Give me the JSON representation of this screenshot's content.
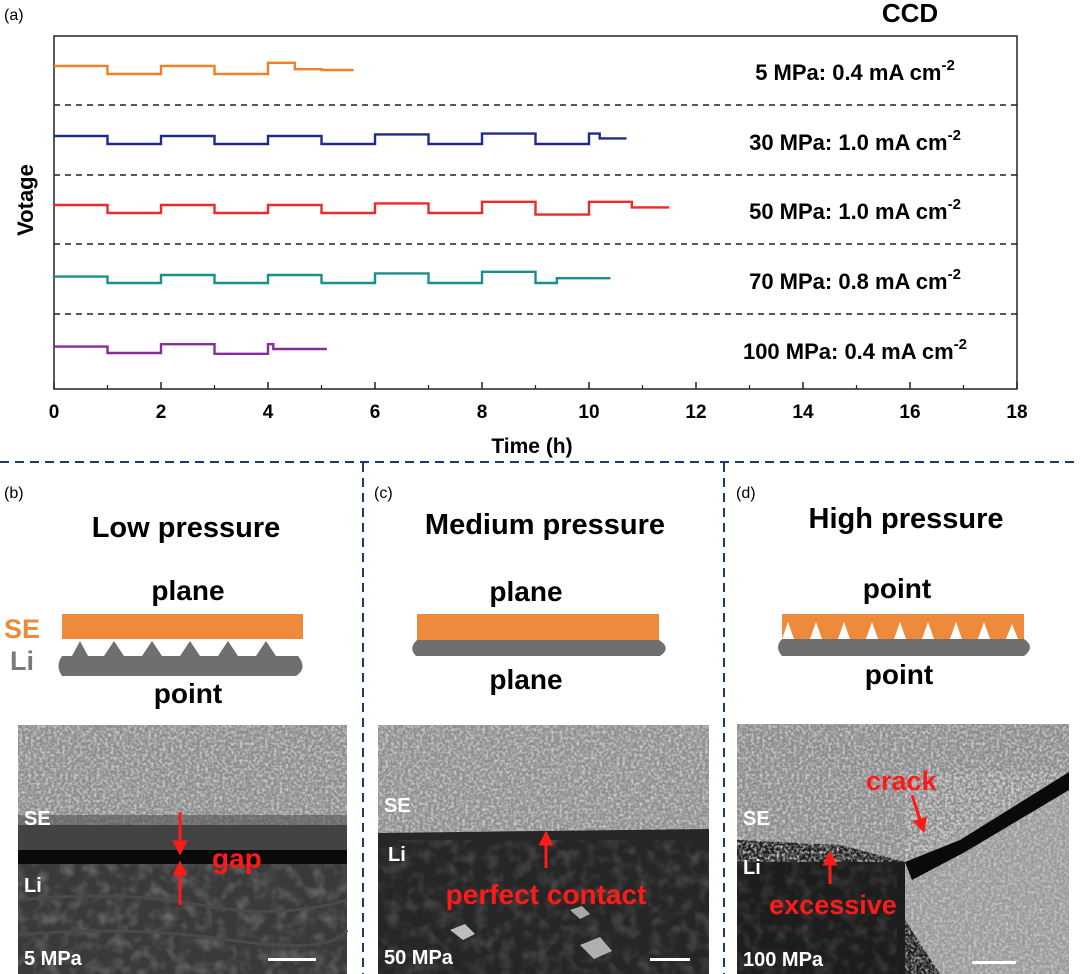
{
  "panel_a": {
    "label": "(a)",
    "title": "CCD",
    "xlabel": "Time (h)",
    "ylabel": "Votage"
  },
  "panels": {
    "b": {
      "label": "(b)",
      "title": "Low pressure",
      "top_text": "plane",
      "bottom_text": "point",
      "se_legend": "SE",
      "li_legend": "Li"
    },
    "c": {
      "label": "(c)",
      "title": "Medium pressure",
      "top_text": "plane",
      "bottom_text": "plane"
    },
    "d": {
      "label": "(d)",
      "title": "High pressure",
      "top_text": "point",
      "bottom_text": "point"
    }
  },
  "sem": {
    "b": {
      "se": "SE",
      "li": "Li",
      "annotation": "gap",
      "pressure": "5 MPa"
    },
    "c": {
      "se": "SE",
      "li": "Li",
      "annotation": "perfect contact",
      "pressure": "50 MPa"
    },
    "d": {
      "se": "SE",
      "li": "Li",
      "annotation": "excessive",
      "annotation2": "crack",
      "pressure": "100 MPa"
    }
  },
  "colors": {
    "se": "#ee8a3c",
    "li": "#7a7a7a",
    "annotation": "#ff1a1a",
    "divider": "#1f3a66"
  },
  "chart_data": {
    "type": "line",
    "title": "CCD",
    "xlabel": "Time (h)",
    "ylabel": "Votage",
    "xlim": [
      0,
      18
    ],
    "xticks": [
      0,
      2,
      4,
      6,
      8,
      10,
      12,
      14,
      16,
      18
    ],
    "y_units": "arbitrary (stacked traces)",
    "series": [
      {
        "name": "5 MPa: 0.4 mA cm",
        "superscript": "-2",
        "color": "#f07f26",
        "t": [
          0,
          1,
          1,
          2,
          2,
          3,
          3,
          4,
          4,
          4.5,
          4.5,
          5,
          5,
          5.6
        ],
        "v": [
          0.5,
          0.5,
          -0.5,
          -0.5,
          0.5,
          0.5,
          -0.5,
          -0.5,
          0.9,
          0.9,
          0.1,
          0.1,
          0.0,
          0.0
        ]
      },
      {
        "name": "30 MPa: 1.0 mA cm",
        "superscript": "-2",
        "color": "#1f2a8c",
        "t": [
          0,
          1,
          1,
          2,
          2,
          3,
          3,
          4,
          4,
          5,
          5,
          6,
          6,
          7,
          7,
          8,
          8,
          9,
          9,
          10,
          10,
          10.2,
          10.2,
          10.7
        ],
        "v": [
          0.5,
          0.5,
          -0.5,
          -0.5,
          0.5,
          0.5,
          -0.5,
          -0.5,
          0.5,
          0.5,
          -0.5,
          -0.5,
          0.7,
          0.7,
          -0.5,
          -0.5,
          0.8,
          0.8,
          -0.5,
          -0.5,
          0.8,
          0.8,
          0.2,
          0.2
        ]
      },
      {
        "name": "50 MPa: 1.0 mA cm",
        "superscript": "-2",
        "color": "#ea2b2b",
        "t": [
          0,
          1,
          1,
          2,
          2,
          3,
          3,
          4,
          4,
          5,
          5,
          6,
          6,
          7,
          7,
          8,
          8,
          9,
          9,
          10,
          10,
          10.8,
          10.8,
          11.5
        ],
        "v": [
          0.5,
          0.5,
          -0.5,
          -0.5,
          0.5,
          0.5,
          -0.5,
          -0.5,
          0.5,
          0.5,
          -0.5,
          -0.5,
          0.7,
          0.7,
          -0.5,
          -0.5,
          0.9,
          0.9,
          -0.7,
          -0.7,
          0.9,
          0.9,
          0.2,
          0.2
        ]
      },
      {
        "name": "70 MPa: 0.8 mA cm",
        "superscript": "-2",
        "color": "#1a8f8c",
        "t": [
          0,
          1,
          1,
          2,
          2,
          3,
          3,
          4,
          4,
          5,
          5,
          6,
          6,
          7,
          7,
          8,
          8,
          9,
          9,
          9.4,
          9.4,
          10.4
        ],
        "v": [
          0.3,
          0.3,
          -0.5,
          -0.5,
          0.5,
          0.5,
          -0.5,
          -0.5,
          0.5,
          0.5,
          -0.5,
          -0.5,
          0.7,
          0.7,
          -0.5,
          -0.5,
          0.9,
          0.9,
          -0.5,
          -0.5,
          0.1,
          0.1
        ]
      },
      {
        "name": "100 MPa: 0.4 mA cm",
        "superscript": "-2",
        "color": "#8a2a9c",
        "t": [
          0,
          1,
          1,
          2,
          2,
          3,
          3,
          4,
          4,
          4.1,
          4.1,
          5.1
        ],
        "v": [
          0.3,
          0.3,
          -0.5,
          -0.5,
          0.6,
          0.6,
          -0.6,
          -0.6,
          0.6,
          0.6,
          0.0,
          0.0
        ]
      }
    ]
  }
}
